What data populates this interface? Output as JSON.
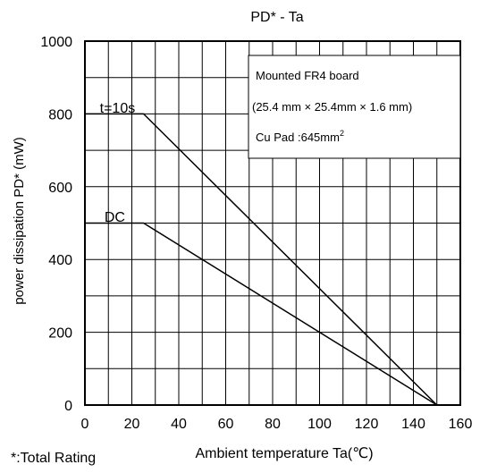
{
  "chart_data": {
    "type": "line",
    "title": "PD* - Ta",
    "xlabel": "Ambient temperature Ta(℃)",
    "ylabel": "power dissipation PD* (mW)",
    "xlim": [
      0,
      160
    ],
    "ylim": [
      0,
      1000
    ],
    "x_ticks": [
      0,
      20,
      40,
      60,
      80,
      100,
      120,
      140,
      160
    ],
    "y_ticks": [
      0,
      200,
      400,
      600,
      800,
      1000
    ],
    "x_minor_step": 10,
    "y_minor_step": 100,
    "grid": true,
    "series": [
      {
        "name": "t=10s",
        "x": [
          0,
          25,
          150
        ],
        "y": [
          800,
          800,
          0
        ]
      },
      {
        "name": "DC",
        "x": [
          0,
          25,
          150
        ],
        "y": [
          500,
          500,
          0
        ]
      }
    ],
    "annotation": {
      "line1": "Mounted FR4 board",
      "line2": "(25.4 mm × 25.4mm × 1.6 mm)",
      "line3_prefix": "Cu Pad :645mm",
      "line3_sup": "2"
    },
    "footnote": "*:Total Rating",
    "colors": {
      "line": "#000000",
      "grid": "#000000",
      "background": "#ffffff"
    }
  }
}
